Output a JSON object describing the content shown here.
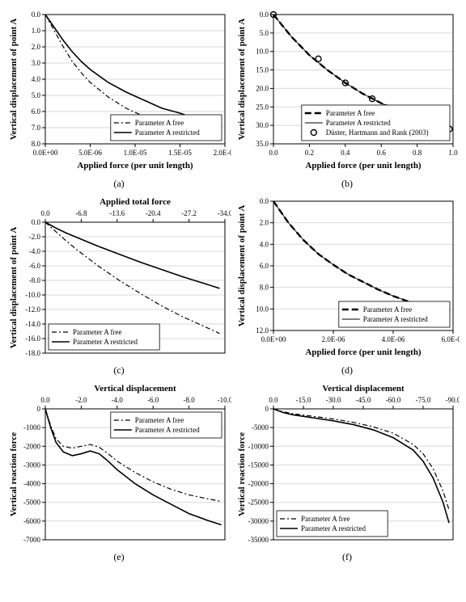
{
  "global": {
    "bg": "#ffffff",
    "axis_color": "#000000",
    "grid_color": "#d9d9d9",
    "tick_len": 4,
    "font_family": "Times New Roman, serif",
    "axis_label_fontsize": 11,
    "tick_fontsize": 9,
    "legend_fontsize": 9,
    "caption_fontsize": 12,
    "series_color": "#000000",
    "line_w_main": 1.6,
    "line_w_thin": 1.0,
    "dash_free": "6 3 2 3",
    "dash_restricted_solid": "",
    "dash_restricted_thick": "8 4",
    "marker_r": 3.5
  },
  "panels": {
    "a": {
      "caption": "(a)",
      "xlabel": "Applied force (per unit length)",
      "ylabel": "Vertical displacement of point A",
      "x": {
        "min": 0,
        "max": 2e-05,
        "ticks": [
          0,
          5e-06,
          1e-05,
          1.5e-05,
          2e-05
        ],
        "tick_labels": [
          "0.0E+00",
          "5.0E-06",
          "1.0E-05",
          "1.5E-05",
          "2.0E-05"
        ]
      },
      "y": {
        "min": 0,
        "max": 8.0,
        "ticks": [
          0,
          1,
          2,
          3,
          4,
          5,
          6,
          7,
          8
        ],
        "tick_labels": [
          "0.0",
          "1.0",
          "2.0",
          "3.0",
          "4.0",
          "5.0",
          "6.0",
          "7.0",
          "8.0"
        ],
        "grid": true
      },
      "x_top": false,
      "legend_pos": "br",
      "series": [
        {
          "name": "Parameter A free",
          "style": "dashdot",
          "width": 1.2,
          "pts": [
            [
              0,
              0
            ],
            [
              1e-06,
              1.0
            ],
            [
              2e-06,
              2.0
            ],
            [
              3e-06,
              2.9
            ],
            [
              4e-06,
              3.6
            ],
            [
              5e-06,
              4.2
            ],
            [
              7e-06,
              5.1
            ],
            [
              9e-06,
              5.8
            ],
            [
              1.1e-05,
              6.3
            ],
            [
              1.3e-05,
              6.6
            ],
            [
              1.5e-05,
              6.9
            ],
            [
              1.7e-05,
              7.05
            ],
            [
              1.9e-05,
              7.15
            ]
          ]
        },
        {
          "name": "Parameter A restricted",
          "style": "solid",
          "width": 1.6,
          "pts": [
            [
              0,
              0
            ],
            [
              1e-06,
              0.8
            ],
            [
              2e-06,
              1.6
            ],
            [
              3e-06,
              2.3
            ],
            [
              4e-06,
              2.9
            ],
            [
              5e-06,
              3.4
            ],
            [
              7e-06,
              4.2
            ],
            [
              9e-06,
              4.8
            ],
            [
              1.1e-05,
              5.3
            ],
            [
              1.3e-05,
              5.8
            ],
            [
              1.5e-05,
              6.1
            ],
            [
              1.6e-05,
              6.3
            ]
          ]
        }
      ]
    },
    "b": {
      "caption": "(b)",
      "xlabel": "Applied force (per unit length)",
      "ylabel": "Vertical displacement of point A",
      "x": {
        "min": 0,
        "max": 1.0,
        "ticks": [
          0,
          0.2,
          0.4,
          0.6,
          0.8,
          1.0
        ],
        "tick_labels": [
          "0.0",
          "0.2",
          "0.4",
          "0.6",
          "0.8",
          "1.0"
        ]
      },
      "y": {
        "min": 0,
        "max": 35,
        "ticks": [
          0,
          5,
          10,
          15,
          20,
          25,
          30,
          35
        ],
        "tick_labels": [
          "0.0",
          "5.0",
          "10.0",
          "15.0",
          "20.0",
          "25.0",
          "30.0",
          "35.0"
        ],
        "grid": true
      },
      "x_top": false,
      "legend_pos": "br",
      "series": [
        {
          "name": "Parameter A free",
          "style": "thickdash",
          "width": 2.4,
          "pts": [
            [
              0,
              0
            ],
            [
              0.05,
              3
            ],
            [
              0.1,
              6
            ],
            [
              0.15,
              8.5
            ],
            [
              0.2,
              11
            ],
            [
              0.3,
              15
            ],
            [
              0.4,
              18.5
            ],
            [
              0.5,
              21.5
            ],
            [
              0.6,
              24
            ],
            [
              0.7,
              26
            ],
            [
              0.8,
              28
            ],
            [
              0.9,
              29.8
            ],
            [
              0.98,
              31
            ]
          ]
        },
        {
          "name": "Parameter A restricted",
          "style": "thin",
          "width": 0.9,
          "pts": [
            [
              0,
              0
            ],
            [
              0.05,
              3
            ],
            [
              0.1,
              6
            ],
            [
              0.15,
              8.5
            ],
            [
              0.2,
              11
            ],
            [
              0.3,
              15
            ],
            [
              0.4,
              18.5
            ],
            [
              0.5,
              21.5
            ],
            [
              0.6,
              24
            ],
            [
              0.7,
              26
            ],
            [
              0.8,
              28
            ],
            [
              0.9,
              29.8
            ],
            [
              0.98,
              31
            ]
          ]
        },
        {
          "name": "Düster, Hartmann and Rank (2003)",
          "style": "marker",
          "width": 1.0,
          "pts": [
            [
              0,
              0
            ],
            [
              0.25,
              12
            ],
            [
              0.4,
              18.5
            ],
            [
              0.55,
              22.8
            ],
            [
              0.75,
              27
            ],
            [
              0.98,
              31
            ]
          ]
        }
      ]
    },
    "c": {
      "caption": "(c)",
      "xlabel": "Applied total force",
      "ylabel": "Vertical displacement of point A",
      "x": {
        "min": 0,
        "max": -34.0,
        "ticks": [
          0,
          -6.8,
          -13.6,
          -20.4,
          -27.2,
          -34.0
        ],
        "tick_labels": [
          "0.0",
          "-6.8",
          "-13.6",
          "-20.4",
          "-27.2",
          "-34.0"
        ]
      },
      "y": {
        "min": 0,
        "max": -18,
        "ticks": [
          0,
          -2,
          -4,
          -6,
          -8,
          -10,
          -12,
          -14,
          -16,
          -18
        ],
        "tick_labels": [
          "0.0",
          "-2.0",
          "-4.0",
          "-6.0",
          "-8.0",
          "-10.0",
          "-12.0",
          "-14.0",
          "-16.0",
          "-18.0"
        ],
        "grid": true
      },
      "x_top": true,
      "legend_pos": "bl",
      "series": [
        {
          "name": "Parameter A free",
          "style": "dashdot",
          "width": 1.2,
          "pts": [
            [
              0,
              0
            ],
            [
              -2,
              -1.3
            ],
            [
              -4,
              -2.6
            ],
            [
              -6,
              -3.8
            ],
            [
              -10,
              -6.0
            ],
            [
              -14,
              -8.0
            ],
            [
              -18,
              -9.8
            ],
            [
              -22,
              -11.5
            ],
            [
              -26,
              -13.0
            ],
            [
              -30,
              -14.3
            ],
            [
              -33,
              -15.3
            ]
          ]
        },
        {
          "name": "Parameter A restricted",
          "style": "solid",
          "width": 1.6,
          "pts": [
            [
              0,
              0
            ],
            [
              -2,
              -0.8
            ],
            [
              -4,
              -1.5
            ],
            [
              -6,
              -2.1
            ],
            [
              -10,
              -3.3
            ],
            [
              -14,
              -4.4
            ],
            [
              -18,
              -5.5
            ],
            [
              -22,
              -6.5
            ],
            [
              -26,
              -7.5
            ],
            [
              -30,
              -8.4
            ],
            [
              -33,
              -9.1
            ]
          ]
        }
      ]
    },
    "d": {
      "caption": "(d)",
      "xlabel": "Applied force (per unit length)",
      "ylabel": "Vertical displacement of point A",
      "x": {
        "min": 0,
        "max": 6e-06,
        "ticks": [
          0,
          2e-06,
          4e-06,
          6e-06
        ],
        "tick_labels": [
          "0.0E+00",
          "2.0E-06",
          "4.0E-06",
          "6.0E-06"
        ]
      },
      "y": {
        "min": 0,
        "max": 12.0,
        "ticks": [
          0,
          2,
          4,
          6,
          8,
          10,
          12
        ],
        "tick_labels": [
          "0.0",
          "2.0",
          "4.0",
          "6.0",
          "8.0",
          "10.0",
          "12.0"
        ],
        "grid": true
      },
      "x_top": false,
      "legend_pos": "br",
      "series": [
        {
          "name": "Parameter A free",
          "style": "thickdash",
          "width": 2.4,
          "pts": [
            [
              0,
              0
            ],
            [
              5e-07,
              2.0
            ],
            [
              1e-06,
              3.6
            ],
            [
              1.5e-06,
              4.9
            ],
            [
              2e-06,
              5.9
            ],
            [
              2.5e-06,
              6.8
            ],
            [
              3e-06,
              7.5
            ],
            [
              3.5e-06,
              8.2
            ],
            [
              4e-06,
              8.8
            ],
            [
              4.5e-06,
              9.3
            ],
            [
              5e-06,
              9.7
            ],
            [
              5.5e-06,
              10.0
            ],
            [
              5.9e-06,
              10.2
            ]
          ]
        },
        {
          "name": "Parameter A restricted",
          "style": "thin",
          "width": 0.9,
          "pts": [
            [
              0,
              0
            ],
            [
              5e-07,
              2.0
            ],
            [
              1e-06,
              3.6
            ],
            [
              1.5e-06,
              4.9
            ],
            [
              2e-06,
              5.9
            ],
            [
              2.5e-06,
              6.8
            ],
            [
              3e-06,
              7.5
            ],
            [
              3.5e-06,
              8.2
            ],
            [
              4e-06,
              8.8
            ],
            [
              4.5e-06,
              9.3
            ],
            [
              5e-06,
              9.7
            ],
            [
              5.5e-06,
              10.0
            ],
            [
              5.9e-06,
              10.2
            ]
          ]
        }
      ]
    },
    "e": {
      "caption": "(e)",
      "xlabel": "Vertical displacement",
      "ylabel": "Vertical reaction force",
      "x": {
        "min": 0,
        "max": -10.0,
        "ticks": [
          0,
          -2,
          -4,
          -6,
          -8,
          -10
        ],
        "tick_labels": [
          "0.0",
          "-2.0",
          "-4.0",
          "-6.0",
          "-8.0",
          "-10.0"
        ]
      },
      "y": {
        "min": 0,
        "max": -7000,
        "ticks": [
          0,
          -1000,
          -2000,
          -3000,
          -4000,
          -5000,
          -6000,
          -7000
        ],
        "tick_labels": [
          "0",
          "-1000",
          "-2000",
          "-3000",
          "-4000",
          "-5000",
          "-6000",
          "-7000"
        ],
        "grid": true
      },
      "x_top": true,
      "legend_pos": "tr",
      "series": [
        {
          "name": "Parameter A free",
          "style": "dashdot",
          "width": 1.2,
          "pts": [
            [
              0,
              0
            ],
            [
              -0.3,
              -900
            ],
            [
              -0.6,
              -1600
            ],
            [
              -1.0,
              -2000
            ],
            [
              -1.5,
              -2100
            ],
            [
              -2.0,
              -2000
            ],
            [
              -2.5,
              -1900
            ],
            [
              -3.0,
              -2050
            ],
            [
              -3.5,
              -2400
            ],
            [
              -4.0,
              -2800
            ],
            [
              -5.0,
              -3400
            ],
            [
              -6.0,
              -3900
            ],
            [
              -7.0,
              -4300
            ],
            [
              -8.0,
              -4600
            ],
            [
              -9.0,
              -4800
            ],
            [
              -9.8,
              -4950
            ]
          ]
        },
        {
          "name": "Parameter A restricted",
          "style": "solid",
          "width": 1.6,
          "pts": [
            [
              0,
              0
            ],
            [
              -0.3,
              -1000
            ],
            [
              -0.6,
              -1800
            ],
            [
              -1.0,
              -2300
            ],
            [
              -1.5,
              -2500
            ],
            [
              -2.0,
              -2400
            ],
            [
              -2.5,
              -2250
            ],
            [
              -3.0,
              -2400
            ],
            [
              -3.5,
              -2800
            ],
            [
              -4.0,
              -3250
            ],
            [
              -5.0,
              -4000
            ],
            [
              -6.0,
              -4600
            ],
            [
              -7.0,
              -5100
            ],
            [
              -8.0,
              -5600
            ],
            [
              -9.0,
              -5950
            ],
            [
              -9.8,
              -6200
            ]
          ]
        }
      ]
    },
    "f": {
      "caption": "(f)",
      "xlabel": "Vertical displacement",
      "ylabel": "Vertical reaction force",
      "x": {
        "min": 0,
        "max": -90,
        "ticks": [
          0,
          -15,
          -30,
          -45,
          -60,
          -75,
          -90
        ],
        "tick_labels": [
          "0.0",
          "-15.0",
          "-30.0",
          "-45.0",
          "-60.0",
          "-75.0",
          "-90.0"
        ]
      },
      "y": {
        "min": 0,
        "max": -35000,
        "ticks": [
          0,
          -5000,
          -10000,
          -15000,
          -20000,
          -25000,
          -30000,
          -35000
        ],
        "tick_labels": [
          "0",
          "-5000",
          "-10000",
          "-15000",
          "-20000",
          "-25000",
          "-30000",
          "-35000"
        ],
        "grid": true
      },
      "x_top": true,
      "legend_pos": "bl",
      "series": [
        {
          "name": "Parameter A free",
          "style": "dashdot",
          "width": 1.2,
          "pts": [
            [
              0,
              0
            ],
            [
              -5,
              -800
            ],
            [
              -10,
              -1300
            ],
            [
              -20,
              -2000
            ],
            [
              -30,
              -2700
            ],
            [
              -40,
              -3600
            ],
            [
              -50,
              -4800
            ],
            [
              -60,
              -6500
            ],
            [
              -70,
              -9500
            ],
            [
              -75,
              -12000
            ],
            [
              -80,
              -16000
            ],
            [
              -85,
              -22000
            ],
            [
              -88,
              -27000
            ]
          ]
        },
        {
          "name": "Parameter A restricted",
          "style": "solid",
          "width": 1.6,
          "pts": [
            [
              0,
              0
            ],
            [
              -5,
              -1000
            ],
            [
              -10,
              -1600
            ],
            [
              -20,
              -2400
            ],
            [
              -30,
              -3200
            ],
            [
              -40,
              -4200
            ],
            [
              -50,
              -5600
            ],
            [
              -60,
              -7700
            ],
            [
              -70,
              -11000
            ],
            [
              -75,
              -14000
            ],
            [
              -80,
              -18500
            ],
            [
              -85,
              -25000
            ],
            [
              -88,
              -30500
            ]
          ]
        }
      ]
    }
  }
}
